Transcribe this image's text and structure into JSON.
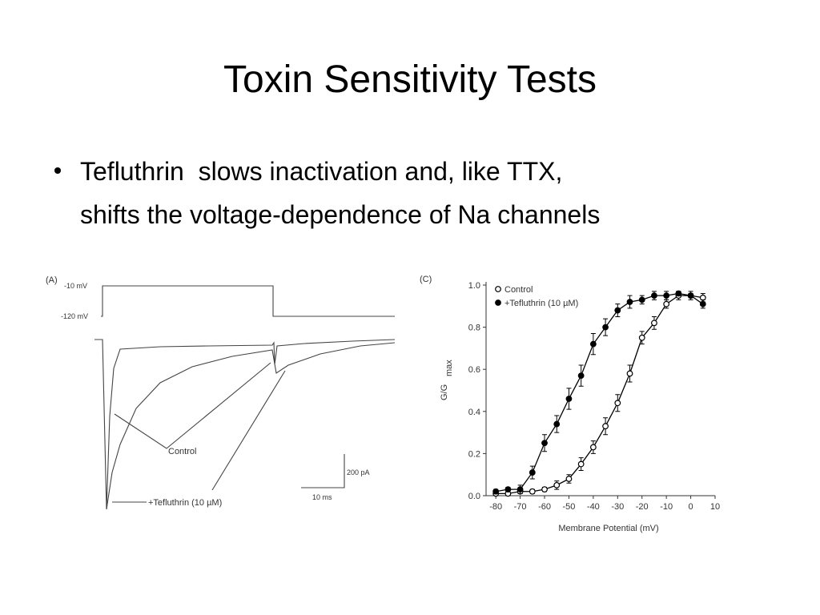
{
  "slide": {
    "title": "Toxin Sensitivity Tests",
    "bullet": [
      "Tefluthrin  slows inactivation and, like TTX,",
      "shifts the voltage-dependence of Na channels"
    ]
  },
  "figure_a": {
    "panel": "(A)",
    "step_high": "-10 mV",
    "step_low": "-120 mV",
    "control": "Control",
    "tefluthrin": "+Tefluthrin (10 µM)",
    "scale_y": "200 pA",
    "scale_x": "10 ms"
  },
  "chart_data": {
    "type": "scatter",
    "panel": "(C)",
    "xlabel": "Membrane Potential (mV)",
    "ylabel": "G/G",
    "ylabel_sub": "max",
    "x": [
      -80,
      -75,
      -70,
      -65,
      -60,
      -55,
      -50,
      -45,
      -40,
      -35,
      -30,
      -25,
      -20,
      -15,
      -10,
      -5,
      0,
      5
    ],
    "series": [
      {
        "name": "Control",
        "color": "#000000",
        "marker_fill": "#ffffff",
        "values": [
          0.01,
          0.01,
          0.02,
          0.02,
          0.03,
          0.05,
          0.08,
          0.15,
          0.23,
          0.33,
          0.44,
          0.58,
          0.75,
          0.82,
          0.91,
          0.95,
          0.95,
          0.94
        ],
        "errors": [
          0.01,
          0.01,
          0.01,
          0.01,
          0.01,
          0.02,
          0.02,
          0.03,
          0.03,
          0.04,
          0.04,
          0.04,
          0.03,
          0.03,
          0.02,
          0.02,
          0.02,
          0.02
        ]
      },
      {
        "name": "+Tefluthrin (10 µM)",
        "color": "#000000",
        "marker_fill": "#000000",
        "values": [
          0.02,
          0.03,
          0.03,
          0.11,
          0.25,
          0.34,
          0.46,
          0.57,
          0.72,
          0.8,
          0.88,
          0.92,
          0.93,
          0.95,
          0.95,
          0.96,
          0.95,
          0.91
        ],
        "errors": [
          0.01,
          0.01,
          0.02,
          0.03,
          0.04,
          0.04,
          0.05,
          0.05,
          0.05,
          0.04,
          0.03,
          0.03,
          0.02,
          0.02,
          0.02,
          0.01,
          0.01,
          0.02
        ]
      }
    ],
    "xlim": [
      -84,
      10
    ],
    "ylim": [
      0,
      1.0
    ],
    "xticks": [
      -80,
      -70,
      -60,
      -50,
      -40,
      -30,
      -20,
      -10,
      0,
      10
    ],
    "yticks": [
      {
        "value": 0,
        "label": "0.0"
      },
      {
        "value": 0.2,
        "label": "0.2"
      },
      {
        "value": 0.4,
        "label": "0.4"
      },
      {
        "value": 0.6,
        "label": "0.6"
      },
      {
        "value": 0.8,
        "label": "0.8"
      },
      {
        "value": 1.0,
        "label": "1.0"
      }
    ]
  }
}
